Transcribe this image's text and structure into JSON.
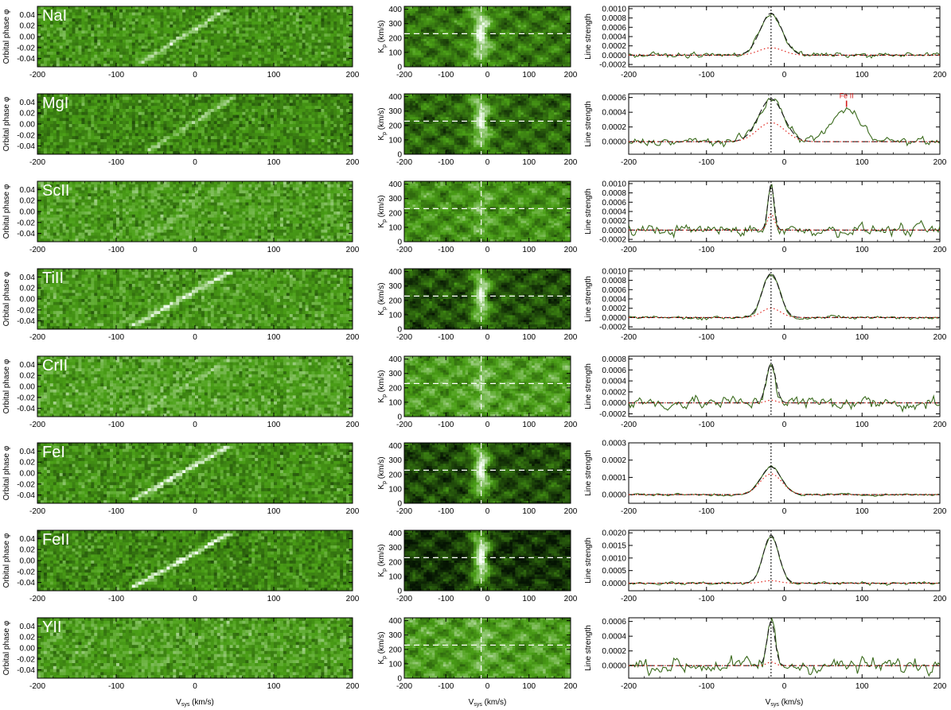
{
  "figure": {
    "left_xlabel": "V",
    "left_xlabel_sub": "sys",
    "left_xlabel_unit": " (km/s)",
    "left_ylabel": "Orbital phase φ",
    "mid_ylabel": "K",
    "mid_ylabel_sub": "p",
    "mid_ylabel_unit": " (km/s)",
    "right_ylabel": "Line strength",
    "colors": {
      "line": "#3a6a1c",
      "dotted": "#e0241c",
      "dashed": "#1a1a1a",
      "annotation": "#d41c1c"
    }
  },
  "chart_data": [
    {
      "type": "heatmap",
      "panel": "phase-maps",
      "species": "NaI",
      "xlim": [
        -200,
        200
      ],
      "ylim": [
        -0.055,
        0.055
      ],
      "xticks": [
        "-200",
        "-100",
        "0",
        "100",
        "200"
      ],
      "yticks": [
        "0.04",
        "0.02",
        "0.00",
        "-0.02",
        "-0.04"
      ],
      "trail": [
        [
          -70,
          -0.05
        ],
        [
          40,
          0.05
        ]
      ],
      "brightness": 0.35,
      "base": 0.45
    },
    {
      "type": "heatmap",
      "panel": "kp-maps",
      "species": "NaI",
      "xlim": [
        -200,
        200
      ],
      "ylim": [
        0,
        420
      ],
      "xticks": [
        "-200",
        "-100",
        "0",
        "100",
        "200"
      ],
      "yticks": [
        "400",
        "300",
        "200",
        "100",
        "0"
      ],
      "marker": [
        -15,
        230
      ],
      "peak": 0.9,
      "base": 0.35
    },
    {
      "type": "line",
      "panel": "line-strength",
      "species": "NaI",
      "xlim": [
        -200,
        200
      ],
      "ylim": [
        -0.00025,
        0.00105
      ],
      "xticks": [
        "-200",
        "-100",
        "0",
        "100",
        "200"
      ],
      "yticks": [
        "0.0010",
        "0.0008",
        "0.0006",
        "0.0004",
        "0.0002",
        "0.0000",
        "-0.0002"
      ],
      "peak_v": -17,
      "peak": 0.0009,
      "width": 14,
      "dotted_peak": 0.00016,
      "noise": 4e-05
    },
    {
      "type": "heatmap",
      "panel": "phase-maps",
      "species": "MgI",
      "xlim": [
        -200,
        200
      ],
      "ylim": [
        -0.055,
        0.055
      ],
      "xticks": [
        "-200",
        "-100",
        "0",
        "100",
        "200"
      ],
      "yticks": [
        "0.04",
        "0.02",
        "0.00",
        "-0.02",
        "-0.04"
      ],
      "trail": [
        [
          -60,
          -0.05
        ],
        [
          50,
          0.05
        ]
      ],
      "brightness": 0.3,
      "base": 0.42
    },
    {
      "type": "heatmap",
      "panel": "kp-maps",
      "species": "MgI",
      "xlim": [
        -200,
        200
      ],
      "ylim": [
        0,
        420
      ],
      "xticks": [
        "-200",
        "-100",
        "0",
        "100",
        "200"
      ],
      "yticks": [
        "400",
        "300",
        "200",
        "100",
        "0"
      ],
      "marker": [
        -15,
        230
      ],
      "peak": 0.85,
      "base": 0.3
    },
    {
      "type": "line",
      "panel": "line-strength",
      "species": "MgI",
      "xlim": [
        -200,
        200
      ],
      "ylim": [
        -0.00017,
        0.00065
      ],
      "xticks": [
        "-200",
        "-100",
        "0",
        "100",
        "200"
      ],
      "yticks": [
        "0.0006",
        "0.0004",
        "0.0002",
        "0.0000"
      ],
      "peak_v": -17,
      "peak": 0.00058,
      "width": 16,
      "dotted_peak": 0.00026,
      "noise": 4e-05,
      "secondary": {
        "v": 80,
        "peak": 0.00042,
        "width": 20
      },
      "annotation": {
        "label": "Fe II",
        "v": 80,
        "y": 0.00045
      }
    },
    {
      "type": "heatmap",
      "panel": "phase-maps",
      "species": "ScII",
      "xlim": [
        -200,
        200
      ],
      "ylim": [
        -0.055,
        0.055
      ],
      "xticks": [
        "-200",
        "-100",
        "0",
        "100",
        "200"
      ],
      "yticks": [
        "0.04",
        "0.02",
        "0.00",
        "-0.02",
        "-0.04"
      ],
      "trail": [
        [
          -65,
          -0.05
        ],
        [
          45,
          0.05
        ]
      ],
      "brightness": 0.12,
      "base": 0.5
    },
    {
      "type": "heatmap",
      "panel": "kp-maps",
      "species": "ScII",
      "xlim": [
        -200,
        200
      ],
      "ylim": [
        0,
        420
      ],
      "xticks": [
        "-200",
        "-100",
        "0",
        "100",
        "200"
      ],
      "yticks": [
        "400",
        "300",
        "200",
        "100",
        "0"
      ],
      "marker": [
        -15,
        230
      ],
      "peak": 0.55,
      "base": 0.45
    },
    {
      "type": "line",
      "panel": "line-strength",
      "species": "ScII",
      "xlim": [
        -200,
        200
      ],
      "ylim": [
        -0.00025,
        0.00105
      ],
      "xticks": [
        "-200",
        "-100",
        "0",
        "100",
        "200"
      ],
      "yticks": [
        "0.0010",
        "0.0008",
        "0.0006",
        "0.0004",
        "0.0002",
        "0.0000",
        "-0.0002"
      ],
      "peak_v": -17,
      "peak": 0.00098,
      "width": 4,
      "dotted_peak": 0.00035,
      "noise": 9e-05
    },
    {
      "type": "heatmap",
      "panel": "phase-maps",
      "species": "TiII",
      "xlim": [
        -200,
        200
      ],
      "ylim": [
        -0.055,
        0.055
      ],
      "xticks": [
        "-200",
        "-100",
        "0",
        "100",
        "200"
      ],
      "yticks": [
        "0.04",
        "0.02",
        "0.00",
        "-0.02",
        "-0.04"
      ],
      "trail": [
        [
          -80,
          -0.05
        ],
        [
          45,
          0.05
        ]
      ],
      "brightness": 0.45,
      "base": 0.48
    },
    {
      "type": "heatmap",
      "panel": "kp-maps",
      "species": "TiII",
      "xlim": [
        -200,
        200
      ],
      "ylim": [
        0,
        420
      ],
      "xticks": [
        "-200",
        "-100",
        "0",
        "100",
        "200"
      ],
      "yticks": [
        "400",
        "300",
        "200",
        "100",
        "0"
      ],
      "marker": [
        -15,
        230
      ],
      "peak": 0.85,
      "base": 0.22
    },
    {
      "type": "line",
      "panel": "line-strength",
      "species": "TiII",
      "xlim": [
        -200,
        200
      ],
      "ylim": [
        -0.00025,
        0.00105
      ],
      "xticks": [
        "-200",
        "-100",
        "0",
        "100",
        "200"
      ],
      "yticks": [
        "0.0010",
        "0.0008",
        "0.0006",
        "0.0004",
        "0.0002",
        "0.0000",
        "-0.0002"
      ],
      "peak_v": -17,
      "peak": 0.00095,
      "width": 11,
      "dotted_peak": 0.0002,
      "noise": 3e-05
    },
    {
      "type": "heatmap",
      "panel": "phase-maps",
      "species": "CrII",
      "xlim": [
        -200,
        200
      ],
      "ylim": [
        -0.055,
        0.055
      ],
      "xticks": [
        "-200",
        "-100",
        "0",
        "100",
        "200"
      ],
      "yticks": [
        "0.04",
        "0.02",
        "0.00",
        "-0.02",
        "-0.04"
      ],
      "trail": [
        [
          -70,
          -0.05
        ],
        [
          45,
          0.05
        ]
      ],
      "brightness": 0.15,
      "base": 0.52
    },
    {
      "type": "heatmap",
      "panel": "kp-maps",
      "species": "CrII",
      "xlim": [
        -200,
        200
      ],
      "ylim": [
        0,
        420
      ],
      "xticks": [
        "-200",
        "-100",
        "0",
        "100",
        "200"
      ],
      "yticks": [
        "400",
        "300",
        "200",
        "100",
        "0"
      ],
      "marker": [
        -15,
        230
      ],
      "peak": 0.6,
      "base": 0.5
    },
    {
      "type": "line",
      "panel": "line-strength",
      "species": "CrII",
      "xlim": [
        -200,
        200
      ],
      "ylim": [
        -0.00025,
        0.00085
      ],
      "xticks": [
        "-200",
        "-100",
        "0",
        "100",
        "200"
      ],
      "yticks": [
        "0.0008",
        "0.0006",
        "0.0004",
        "0.0002",
        "0.0000",
        "-0.0002"
      ],
      "peak_v": -17,
      "peak": 0.00072,
      "width": 6,
      "dotted_peak": 5e-05,
      "noise": 9e-05
    },
    {
      "type": "heatmap",
      "panel": "phase-maps",
      "species": "FeI",
      "xlim": [
        -200,
        200
      ],
      "ylim": [
        -0.055,
        0.055
      ],
      "xticks": [
        "-200",
        "-100",
        "0",
        "100",
        "200"
      ],
      "yticks": [
        "0.04",
        "0.02",
        "0.00",
        "-0.02",
        "-0.04"
      ],
      "trail": [
        [
          -80,
          -0.05
        ],
        [
          45,
          0.05
        ]
      ],
      "brightness": 0.5,
      "base": 0.45
    },
    {
      "type": "heatmap",
      "panel": "kp-maps",
      "species": "FeI",
      "xlim": [
        -200,
        200
      ],
      "ylim": [
        0,
        420
      ],
      "xticks": [
        "-200",
        "-100",
        "0",
        "100",
        "200"
      ],
      "yticks": [
        "400",
        "300",
        "200",
        "100",
        "0"
      ],
      "marker": [
        -15,
        230
      ],
      "peak": 0.9,
      "base": 0.2
    },
    {
      "type": "line",
      "panel": "line-strength",
      "species": "FeI",
      "xlim": [
        -200,
        200
      ],
      "ylim": [
        -5e-05,
        0.0003
      ],
      "xticks": [
        "-200",
        "-100",
        "0",
        "100",
        "200"
      ],
      "yticks": [
        "0.0003",
        "0.0002",
        "0.0001",
        "0.0000"
      ],
      "peak_v": -17,
      "peak": 0.00016,
      "width": 13,
      "dotted_peak": 0.00012,
      "noise": 5e-06
    },
    {
      "type": "heatmap",
      "panel": "phase-maps",
      "species": "FeII",
      "xlim": [
        -200,
        200
      ],
      "ylim": [
        -0.055,
        0.055
      ],
      "xticks": [
        "-200",
        "-100",
        "0",
        "100",
        "200"
      ],
      "yticks": [
        "0.04",
        "0.02",
        "0.00",
        "-0.02",
        "-0.04"
      ],
      "trail": [
        [
          -80,
          -0.05
        ],
        [
          45,
          0.05
        ]
      ],
      "brightness": 0.55,
      "base": 0.42
    },
    {
      "type": "heatmap",
      "panel": "kp-maps",
      "species": "FeII",
      "xlim": [
        -200,
        200
      ],
      "ylim": [
        0,
        420
      ],
      "xticks": [
        "-200",
        "-100",
        "0",
        "100",
        "200"
      ],
      "yticks": [
        "400",
        "300",
        "200",
        "100",
        "0"
      ],
      "marker": [
        -15,
        230
      ],
      "peak": 0.95,
      "base": 0.12
    },
    {
      "type": "line",
      "panel": "line-strength",
      "species": "FeII",
      "xlim": [
        -200,
        200
      ],
      "ylim": [
        -0.0003,
        0.0021
      ],
      "xticks": [
        "-200",
        "-100",
        "0",
        "100",
        "200"
      ],
      "yticks": [
        "0.0020",
        "0.0015",
        "0.0010",
        "0.0005",
        "0.0000"
      ],
      "peak_v": -17,
      "peak": 0.0019,
      "width": 10,
      "dotted_peak": 0.0001,
      "noise": 5e-05
    },
    {
      "type": "heatmap",
      "panel": "phase-maps",
      "species": "YII",
      "xlim": [
        -200,
        200
      ],
      "ylim": [
        -0.055,
        0.055
      ],
      "xticks": [
        "-200",
        "-100",
        "0",
        "100",
        "200"
      ],
      "yticks": [
        "0.04",
        "0.02",
        "0.00",
        "-0.02",
        "-0.04"
      ],
      "trail": [
        [
          -70,
          -0.05
        ],
        [
          45,
          0.05
        ]
      ],
      "brightness": 0.1,
      "base": 0.5
    },
    {
      "type": "heatmap",
      "panel": "kp-maps",
      "species": "YII",
      "xlim": [
        -200,
        200
      ],
      "ylim": [
        0,
        420
      ],
      "xticks": [
        "-200",
        "-100",
        "0",
        "100",
        "200"
      ],
      "yticks": [
        "400",
        "300",
        "200",
        "100",
        "0"
      ],
      "marker": [
        -15,
        230
      ],
      "peak": 0.55,
      "base": 0.5
    },
    {
      "type": "line",
      "panel": "line-strength",
      "species": "YII",
      "xlim": [
        -200,
        200
      ],
      "ylim": [
        -0.00017,
        0.00065
      ],
      "xticks": [
        "-200",
        "-100",
        "0",
        "100",
        "200"
      ],
      "yticks": [
        "0.0006",
        "0.0004",
        "0.0002",
        "0.0000"
      ],
      "peak_v": -17,
      "peak": 0.0006,
      "width": 5,
      "dotted_peak": 5e-05,
      "noise": 8e-05
    }
  ]
}
